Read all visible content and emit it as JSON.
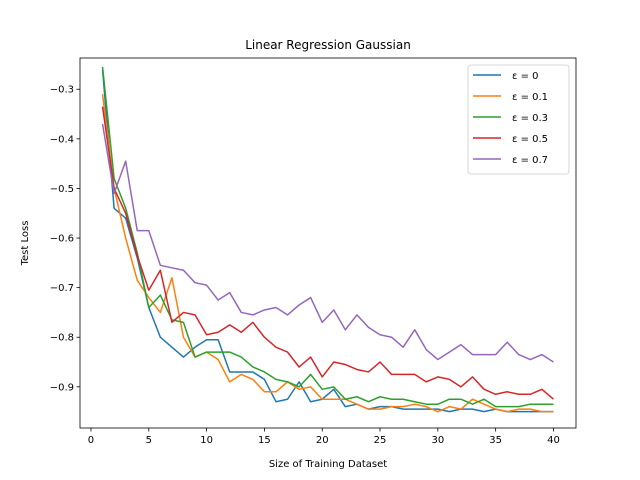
{
  "chart_data": {
    "type": "line",
    "title": "Linear Regression Gaussian",
    "xlabel": "Size of Training Dataset",
    "ylabel": "Test Loss",
    "xlim": [
      -0.95,
      41.95
    ],
    "ylim": [
      -0.983,
      -0.237
    ],
    "xticks": [
      0,
      5,
      10,
      15,
      20,
      25,
      30,
      35,
      40
    ],
    "yticks": [
      -0.3,
      -0.4,
      -0.5,
      -0.6,
      -0.7,
      -0.8,
      -0.9
    ],
    "ytick_labels": [
      "−0.3",
      "−0.4",
      "−0.5",
      "−0.6",
      "−0.7",
      "−0.8",
      "−0.9"
    ],
    "grid": false,
    "legend_position": "top-right",
    "x": [
      1,
      2,
      3,
      4,
      5,
      6,
      7,
      8,
      9,
      10,
      11,
      12,
      13,
      14,
      15,
      16,
      17,
      18,
      19,
      20,
      21,
      22,
      23,
      24,
      25,
      26,
      27,
      28,
      29,
      30,
      31,
      32,
      33,
      34,
      35,
      36,
      37,
      38,
      39,
      40
    ],
    "series": [
      {
        "name": "ε = 0",
        "color": "#1f77b4",
        "values": [
          -0.26,
          -0.54,
          -0.56,
          -0.64,
          -0.74,
          -0.8,
          -0.82,
          -0.84,
          -0.82,
          -0.805,
          -0.805,
          -0.87,
          -0.87,
          -0.87,
          -0.885,
          -0.93,
          -0.925,
          -0.89,
          -0.93,
          -0.925,
          -0.905,
          -0.94,
          -0.935,
          -0.945,
          -0.94,
          -0.94,
          -0.945,
          -0.945,
          -0.945,
          -0.945,
          -0.95,
          -0.945,
          -0.945,
          -0.95,
          -0.945,
          -0.95,
          -0.95,
          -0.95,
          -0.95,
          -0.95
        ]
      },
      {
        "name": "ε = 0.1",
        "color": "#ff7f0e",
        "values": [
          -0.31,
          -0.5,
          -0.6,
          -0.685,
          -0.72,
          -0.75,
          -0.68,
          -0.8,
          -0.84,
          -0.83,
          -0.845,
          -0.89,
          -0.875,
          -0.885,
          -0.91,
          -0.91,
          -0.89,
          -0.905,
          -0.9,
          -0.925,
          -0.925,
          -0.925,
          -0.935,
          -0.945,
          -0.945,
          -0.94,
          -0.94,
          -0.935,
          -0.94,
          -0.95,
          -0.94,
          -0.945,
          -0.925,
          -0.935,
          -0.945,
          -0.95,
          -0.945,
          -0.945,
          -0.95,
          -0.95
        ]
      },
      {
        "name": "ε = 0.3",
        "color": "#2ca02c",
        "values": [
          -0.255,
          -0.48,
          -0.54,
          -0.63,
          -0.74,
          -0.715,
          -0.765,
          -0.77,
          -0.84,
          -0.83,
          -0.83,
          -0.83,
          -0.84,
          -0.86,
          -0.87,
          -0.885,
          -0.89,
          -0.9,
          -0.875,
          -0.905,
          -0.9,
          -0.925,
          -0.92,
          -0.93,
          -0.92,
          -0.925,
          -0.925,
          -0.93,
          -0.935,
          -0.935,
          -0.925,
          -0.925,
          -0.935,
          -0.925,
          -0.94,
          -0.94,
          -0.94,
          -0.935,
          -0.935,
          -0.935
        ]
      },
      {
        "name": "ε = 0.5",
        "color": "#d62728",
        "values": [
          -0.335,
          -0.5,
          -0.55,
          -0.635,
          -0.705,
          -0.665,
          -0.77,
          -0.75,
          -0.755,
          -0.795,
          -0.79,
          -0.775,
          -0.79,
          -0.77,
          -0.8,
          -0.82,
          -0.83,
          -0.86,
          -0.84,
          -0.88,
          -0.85,
          -0.855,
          -0.865,
          -0.87,
          -0.85,
          -0.875,
          -0.875,
          -0.875,
          -0.89,
          -0.88,
          -0.885,
          -0.9,
          -0.88,
          -0.905,
          -0.915,
          -0.91,
          -0.915,
          -0.915,
          -0.905,
          -0.925
        ]
      },
      {
        "name": "ε = 0.7",
        "color": "#9467bd",
        "values": [
          -0.37,
          -0.51,
          -0.445,
          -0.585,
          -0.585,
          -0.655,
          -0.66,
          -0.665,
          -0.69,
          -0.695,
          -0.725,
          -0.71,
          -0.75,
          -0.755,
          -0.745,
          -0.74,
          -0.755,
          -0.735,
          -0.72,
          -0.77,
          -0.745,
          -0.785,
          -0.755,
          -0.78,
          -0.795,
          -0.8,
          -0.82,
          -0.785,
          -0.825,
          -0.845,
          -0.83,
          -0.815,
          -0.835,
          -0.835,
          -0.835,
          -0.81,
          -0.835,
          -0.845,
          -0.835,
          -0.85
        ]
      }
    ]
  }
}
